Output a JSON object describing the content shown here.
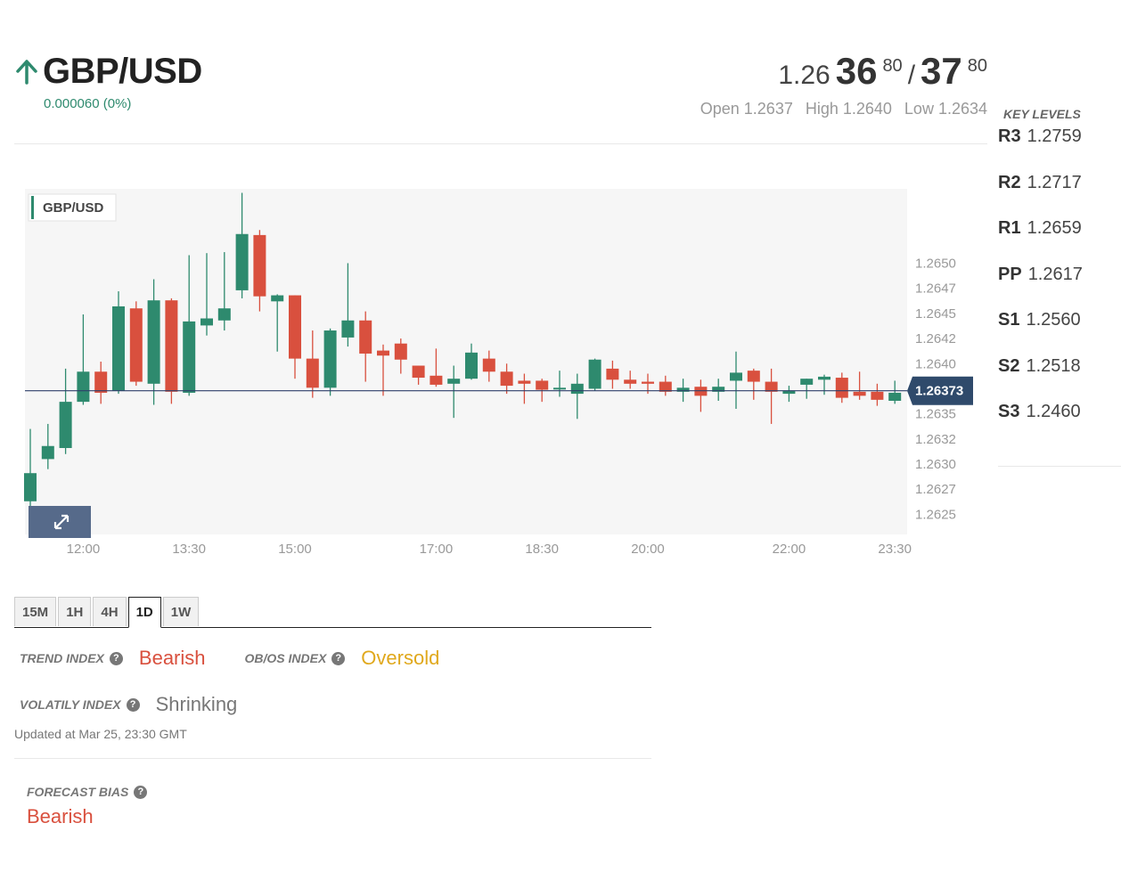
{
  "header": {
    "symbol": "GBP/USD",
    "change": "0.000060 (0%)",
    "price": {
      "prefix": "1.26",
      "bid_big": "36",
      "bid_sup": "80",
      "separator": "/",
      "ask_big": "37",
      "ask_sup": "80"
    },
    "ohl": {
      "open": "Open 1.2637",
      "high": "High 1.2640",
      "low": "Low 1.2634"
    }
  },
  "key_levels": {
    "title": "KEY LEVELS",
    "items": [
      {
        "key": "R3",
        "value": "1.2759"
      },
      {
        "key": "R2",
        "value": "1.2717"
      },
      {
        "key": "R1",
        "value": "1.2659"
      },
      {
        "key": "PP",
        "value": "1.2617"
      },
      {
        "key": "S1",
        "value": "1.2560"
      },
      {
        "key": "S2",
        "value": "1.2518"
      },
      {
        "key": "S3",
        "value": "1.2460"
      }
    ]
  },
  "colors": {
    "up": "#2e8a6e",
    "down": "#d9503e",
    "current_line": "#2f3f6b",
    "current_tag": "#2f4a6b",
    "grid_bg": "#f6f6f6"
  },
  "chart_data": {
    "type": "candlestick",
    "legend": "GBP/USD",
    "current_price": 1.26373,
    "current_price_label": "1.26373",
    "ylim": [
      1.2623,
      1.26574
    ],
    "y_ticks": [
      "1.2650",
      "1.2647",
      "1.2645",
      "1.2642",
      "1.2640",
      "1.2637",
      "1.2635",
      "1.2632",
      "1.2630",
      "1.2627",
      "1.2625"
    ],
    "y_tick_values": [
      1.265,
      1.26475,
      1.2645,
      1.26425,
      1.264,
      1.26375,
      1.2635,
      1.26325,
      1.263,
      1.26275,
      1.2625
    ],
    "x_ticks": [
      "12:00",
      "13:30",
      "15:00",
      "17:00",
      "18:30",
      "20:00",
      "22:00",
      "23:30"
    ],
    "x_tick_index": [
      3,
      9,
      15,
      23,
      29,
      35,
      43,
      49
    ],
    "candles": [
      {
        "o": 1.26263,
        "h": 1.26335,
        "l": 1.26233,
        "c": 1.26291
      },
      {
        "o": 1.26305,
        "h": 1.2634,
        "l": 1.26295,
        "c": 1.26318
      },
      {
        "o": 1.26316,
        "h": 1.26395,
        "l": 1.2631,
        "c": 1.26362
      },
      {
        "o": 1.26362,
        "h": 1.26449,
        "l": 1.26359,
        "c": 1.26392
      },
      {
        "o": 1.26392,
        "h": 1.26402,
        "l": 1.2636,
        "c": 1.26371
      },
      {
        "o": 1.26373,
        "h": 1.26472,
        "l": 1.2637,
        "c": 1.26457
      },
      {
        "o": 1.26455,
        "h": 1.26462,
        "l": 1.26378,
        "c": 1.26382
      },
      {
        "o": 1.2638,
        "h": 1.26484,
        "l": 1.26359,
        "c": 1.26463
      },
      {
        "o": 1.26463,
        "h": 1.26465,
        "l": 1.2636,
        "c": 1.26372
      },
      {
        "o": 1.26371,
        "h": 1.26508,
        "l": 1.26368,
        "c": 1.26442
      },
      {
        "o": 1.26438,
        "h": 1.2651,
        "l": 1.26428,
        "c": 1.26445
      },
      {
        "o": 1.26443,
        "h": 1.26511,
        "l": 1.26433,
        "c": 1.26455
      },
      {
        "o": 1.26473,
        "h": 1.2657,
        "l": 1.26465,
        "c": 1.26529
      },
      {
        "o": 1.26528,
        "h": 1.26533,
        "l": 1.26452,
        "c": 1.26467
      },
      {
        "o": 1.26462,
        "h": 1.26469,
        "l": 1.26412,
        "c": 1.26468
      },
      {
        "o": 1.26468,
        "h": 1.26468,
        "l": 1.26385,
        "c": 1.26405
      },
      {
        "o": 1.26405,
        "h": 1.26433,
        "l": 1.26366,
        "c": 1.26376
      },
      {
        "o": 1.26376,
        "h": 1.26435,
        "l": 1.26368,
        "c": 1.26433
      },
      {
        "o": 1.26426,
        "h": 1.265,
        "l": 1.26417,
        "c": 1.26443
      },
      {
        "o": 1.26443,
        "h": 1.26452,
        "l": 1.26382,
        "c": 1.2641
      },
      {
        "o": 1.26413,
        "h": 1.26419,
        "l": 1.26368,
        "c": 1.26408
      },
      {
        "o": 1.2642,
        "h": 1.26425,
        "l": 1.2639,
        "c": 1.26404
      },
      {
        "o": 1.26398,
        "h": 1.26398,
        "l": 1.26379,
        "c": 1.26386
      },
      {
        "o": 1.26388,
        "h": 1.26415,
        "l": 1.26377,
        "c": 1.26379
      },
      {
        "o": 1.2638,
        "h": 1.26398,
        "l": 1.26346,
        "c": 1.26385
      },
      {
        "o": 1.26385,
        "h": 1.2642,
        "l": 1.26384,
        "c": 1.26411
      },
      {
        "o": 1.26405,
        "h": 1.26413,
        "l": 1.26382,
        "c": 1.26392
      },
      {
        "o": 1.26392,
        "h": 1.264,
        "l": 1.2637,
        "c": 1.26378
      },
      {
        "o": 1.26383,
        "h": 1.2639,
        "l": 1.2636,
        "c": 1.2638
      },
      {
        "o": 1.26383,
        "h": 1.26385,
        "l": 1.26362,
        "c": 1.26374
      },
      {
        "o": 1.26376,
        "h": 1.26393,
        "l": 1.26367,
        "c": 1.26376
      },
      {
        "o": 1.2637,
        "h": 1.2639,
        "l": 1.26345,
        "c": 1.2638
      },
      {
        "o": 1.26375,
        "h": 1.26405,
        "l": 1.26373,
        "c": 1.26404
      },
      {
        "o": 1.26395,
        "h": 1.26403,
        "l": 1.26375,
        "c": 1.26384
      },
      {
        "o": 1.26384,
        "h": 1.26393,
        "l": 1.26375,
        "c": 1.2638
      },
      {
        "o": 1.26382,
        "h": 1.2639,
        "l": 1.2637,
        "c": 1.2638
      },
      {
        "o": 1.26382,
        "h": 1.26388,
        "l": 1.26368,
        "c": 1.26372
      },
      {
        "o": 1.26372,
        "h": 1.26385,
        "l": 1.26362,
        "c": 1.26376
      },
      {
        "o": 1.26377,
        "h": 1.26384,
        "l": 1.26352,
        "c": 1.26368
      },
      {
        "o": 1.26372,
        "h": 1.26385,
        "l": 1.26363,
        "c": 1.26377
      },
      {
        "o": 1.26383,
        "h": 1.26412,
        "l": 1.26355,
        "c": 1.26391
      },
      {
        "o": 1.26393,
        "h": 1.26395,
        "l": 1.26364,
        "c": 1.26382
      },
      {
        "o": 1.26382,
        "h": 1.26395,
        "l": 1.2634,
        "c": 1.26372
      },
      {
        "o": 1.2637,
        "h": 1.26378,
        "l": 1.26362,
        "c": 1.26373
      },
      {
        "o": 1.26379,
        "h": 1.26385,
        "l": 1.26365,
        "c": 1.26385
      },
      {
        "o": 1.26384,
        "h": 1.26389,
        "l": 1.26369,
        "c": 1.26387
      },
      {
        "o": 1.26386,
        "h": 1.26391,
        "l": 1.26361,
        "c": 1.26366
      },
      {
        "o": 1.26372,
        "h": 1.26392,
        "l": 1.26364,
        "c": 1.26368
      },
      {
        "o": 1.26372,
        "h": 1.2638,
        "l": 1.26358,
        "c": 1.26364
      },
      {
        "o": 1.26363,
        "h": 1.26383,
        "l": 1.2636,
        "c": 1.26371
      }
    ]
  },
  "timeframes": {
    "tabs": [
      "15M",
      "1H",
      "4H",
      "1D",
      "1W"
    ],
    "active": "1D"
  },
  "indicators": {
    "trend": {
      "label": "TREND INDEX",
      "value": "Bearish"
    },
    "obos": {
      "label": "OB/OS INDEX",
      "value": "Oversold"
    },
    "volatility": {
      "label": "VOLATILY INDEX",
      "value": "Shrinking"
    },
    "updated": "Updated at Mar 25, 23:30 GMT"
  },
  "forecast": {
    "label": "FORECAST BIAS",
    "value": "Bearish"
  },
  "icons": {
    "trend": "arrow-up-icon",
    "help": "question-icon",
    "expand": "expand-icon"
  }
}
